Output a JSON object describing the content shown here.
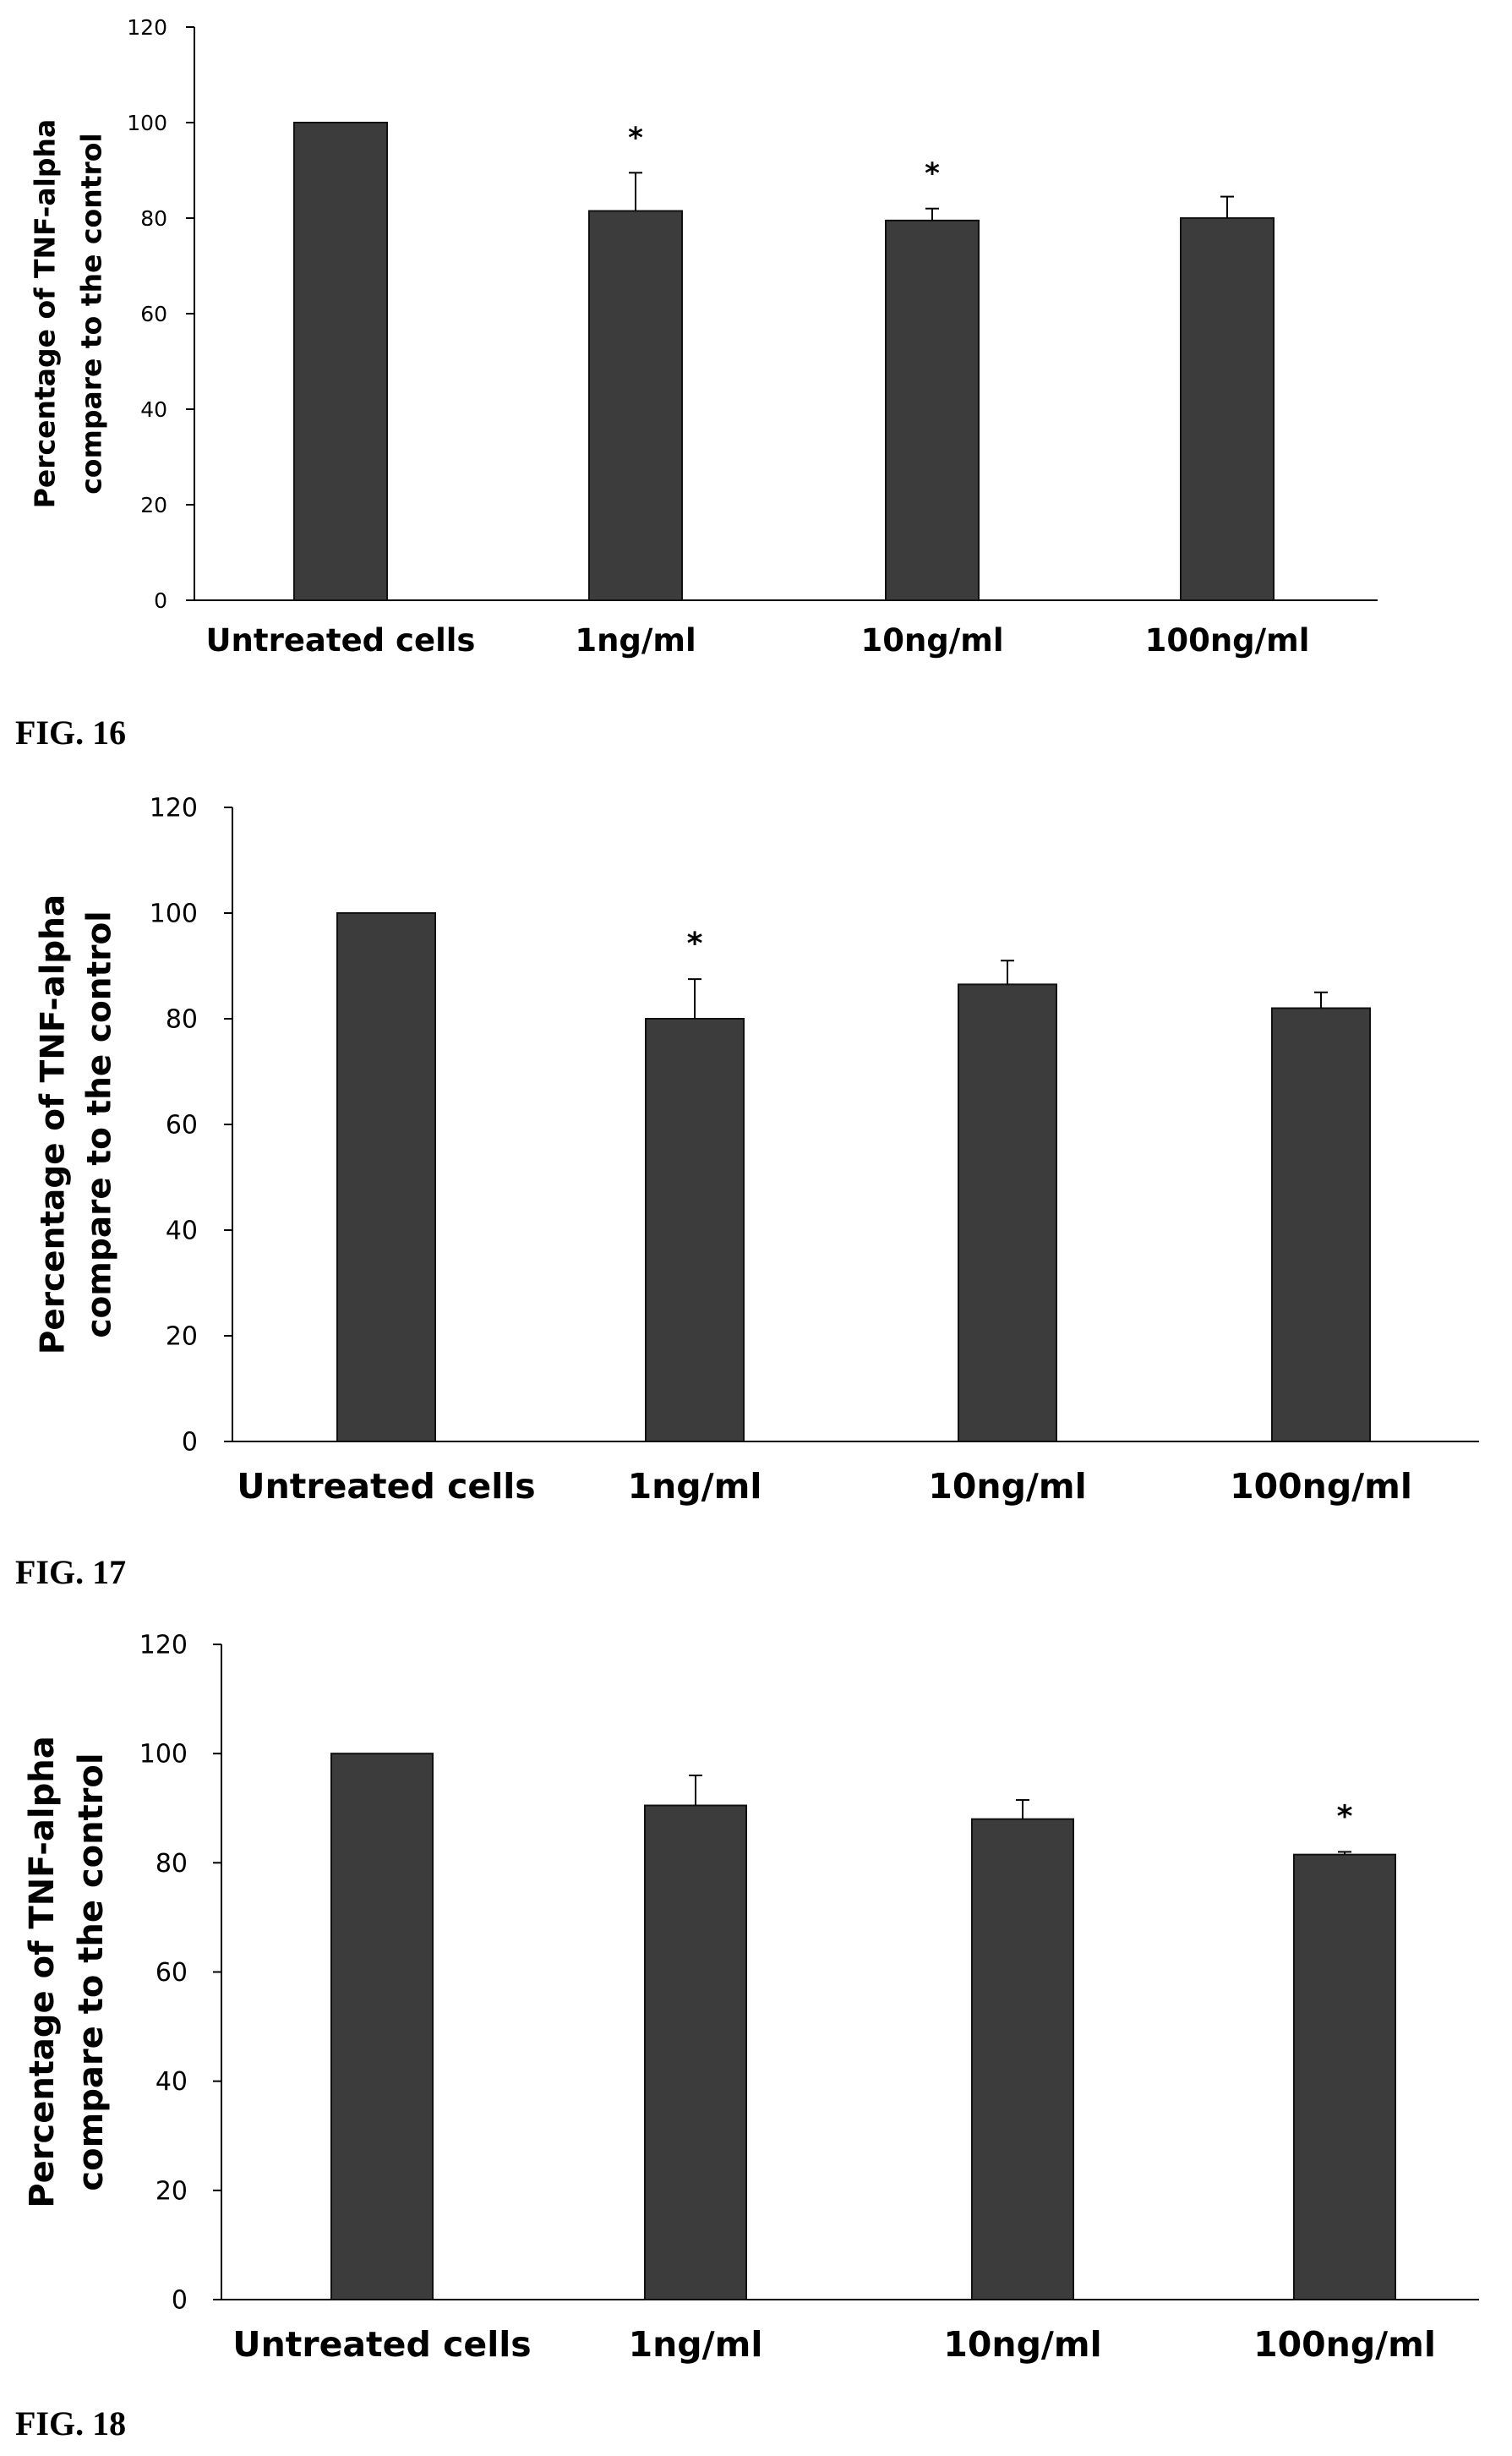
{
  "chart_data": [
    {
      "type": "bar",
      "figure_label": "FIG. 16",
      "ylabel_lines": [
        "Percentage of TNF-alpha",
        "compare to the control"
      ],
      "categories": [
        "Untreated cells",
        "1ng/ml",
        "10ng/ml",
        "100ng/ml"
      ],
      "values": [
        100,
        81.5,
        79.5,
        80
      ],
      "errors": [
        0,
        8,
        2.5,
        4.5
      ],
      "significance": [
        "",
        "*",
        "*",
        ""
      ],
      "ylim": [
        0,
        120
      ],
      "yticks": [
        0,
        20,
        40,
        60,
        80,
        100,
        120
      ],
      "grid": false,
      "bar_color": "#3c3c3c"
    },
    {
      "type": "bar",
      "figure_label": "FIG. 17",
      "ylabel_lines": [
        "Percentage of TNF-alpha",
        "compare to the control"
      ],
      "categories": [
        "Untreated cells",
        "1ng/ml",
        "10ng/ml",
        "100ng/ml"
      ],
      "values": [
        100,
        80,
        86.5,
        82
      ],
      "errors": [
        0,
        7.5,
        4.5,
        3
      ],
      "significance": [
        "",
        "*",
        "",
        ""
      ],
      "ylim": [
        0,
        120
      ],
      "yticks": [
        0,
        20,
        40,
        60,
        80,
        100,
        120
      ],
      "grid": false,
      "bar_color": "#3c3c3c"
    },
    {
      "type": "bar",
      "figure_label": "FIG. 18",
      "ylabel_lines": [
        "Percentage of TNF-alpha",
        "compare to the control"
      ],
      "categories": [
        "Untreated cells",
        "1ng/ml",
        "10ng/ml",
        "100ng/ml"
      ],
      "values": [
        100,
        90.5,
        88,
        81.5
      ],
      "errors": [
        0,
        5.5,
        3.5,
        0.5
      ],
      "significance": [
        "",
        "",
        "",
        "*"
      ],
      "ylim": [
        0,
        120
      ],
      "yticks": [
        0,
        20,
        40,
        60,
        80,
        100,
        120
      ],
      "grid": false,
      "bar_color": "#3c3c3c"
    }
  ]
}
